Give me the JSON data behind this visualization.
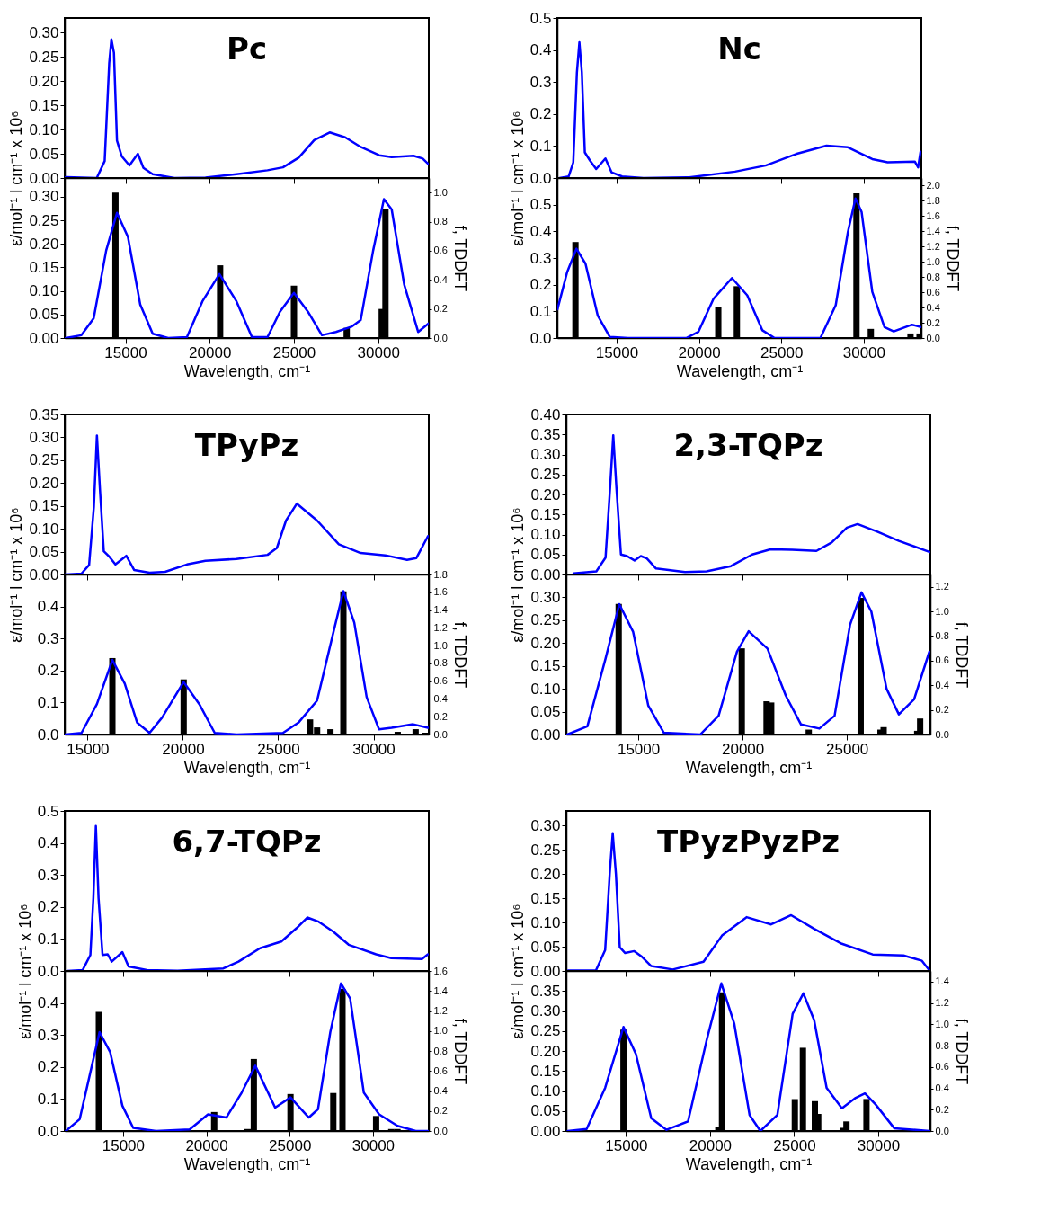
{
  "chart_data": [
    {
      "type": "line",
      "title": "Pc",
      "ylabel": "ε/mol⁻¹ l cm⁻¹ x 10⁶",
      "tick_labels": "y",
      "xlim": [
        11400,
        33000
      ],
      "xticks": [
        15000,
        20000,
        25000,
        30000
      ],
      "ylim": [
        0,
        0.33
      ],
      "yticks": [
        {
          "value": 0,
          "label": "0.00"
        },
        {
          "value": 0.05,
          "label": "0.05"
        },
        {
          "value": 0.1,
          "label": "0.10"
        },
        {
          "value": 0.15,
          "label": "0.15"
        },
        {
          "value": 0.2,
          "label": "0.20"
        },
        {
          "value": 0.25,
          "label": "0.25"
        },
        {
          "value": 0.3,
          "label": "0.30"
        }
      ],
      "series": [
        {
          "type": "line",
          "color": "#0000ff",
          "x": [
            11460,
            13300,
            13770,
            14040,
            14170,
            14320,
            14500,
            14780,
            15240,
            15740,
            16070,
            16620,
            17910,
            19750,
            21590,
            23430,
            24350,
            25280,
            26200,
            27120,
            28040,
            28960,
            30060,
            30800,
            32090,
            32640,
            32970
          ],
          "values": [
            0.002,
            0,
            0.035,
            0.237,
            0.286,
            0.258,
            0.077,
            0.045,
            0.026,
            0.05,
            0.021,
            0.008,
            0,
            0.001,
            0.008,
            0.016,
            0.022,
            0.042,
            0.078,
            0.094,
            0.084,
            0.064,
            0.047,
            0.043,
            0.046,
            0.04,
            0.029
          ]
        }
      ]
    },
    {
      "type": "line",
      "xlabel": "Wavelength, cm⁻¹",
      "y2label": "f, TDDFT",
      "xlim": [
        11400,
        33000
      ],
      "xticks": [
        15000,
        20000,
        25000,
        30000
      ],
      "ylim": [
        0,
        0.34
      ],
      "yticks": [
        {
          "value": 0,
          "label": "0.00"
        },
        {
          "value": 0.05,
          "label": "0.05"
        },
        {
          "value": 0.1,
          "label": "0.10"
        },
        {
          "value": 0.15,
          "label": "0.15"
        },
        {
          "value": 0.2,
          "label": "0.20"
        },
        {
          "value": 0.25,
          "label": "0.25"
        },
        {
          "value": 0.3,
          "label": "0.30"
        }
      ],
      "y2lim": [
        0,
        1.1
      ],
      "y2ticks": [
        {
          "value": 0,
          "label": "0.0"
        },
        {
          "value": 0.2,
          "label": "0.2"
        },
        {
          "value": 0.4,
          "label": "0.4"
        },
        {
          "value": 0.6,
          "label": "0.6"
        },
        {
          "value": 0.8,
          "label": "0.8"
        },
        {
          "value": 1,
          "label": "1.0"
        }
      ],
      "series": [
        {
          "type": "line",
          "color": "#0000ff",
          "x": [
            11460,
            12390,
            13120,
            13860,
            14500,
            15150,
            15880,
            16620,
            17540,
            18650,
            19570,
            20580,
            21590,
            22510,
            23430,
            24170,
            25000,
            25830,
            26660,
            27490,
            28410,
            28960,
            29700,
            30340,
            30800,
            31540,
            32370,
            32990
          ],
          "values": [
            0,
            0.006,
            0.042,
            0.186,
            0.266,
            0.215,
            0.071,
            0.009,
            0,
            0.002,
            0.078,
            0.136,
            0.078,
            0.002,
            0.002,
            0.056,
            0.096,
            0.056,
            0.006,
            0.013,
            0.024,
            0.038,
            0.186,
            0.295,
            0.273,
            0.114,
            0.013,
            0.031
          ]
        },
        {
          "type": "bar",
          "axis": "y2",
          "color": "#000000",
          "x": [
            14410,
            20620,
            25000,
            28130,
            30210,
            30430
          ],
          "values": [
            1.0,
            0.5,
            0.36,
            0.07,
            0.2,
            0.89
          ]
        }
      ]
    },
    {
      "type": "line",
      "title": "Nc",
      "ylabel": "ε/mol⁻¹ l cm⁻¹ x 10⁶",
      "tick_labels": "y",
      "xlim": [
        11400,
        33500
      ],
      "xticks": [
        15000,
        20000,
        25000,
        30000
      ],
      "ylim": [
        0,
        0.5
      ],
      "yticks": [
        {
          "value": 0,
          "label": "0.0"
        },
        {
          "value": 0.1,
          "label": "0.1"
        },
        {
          "value": 0.2,
          "label": "0.2"
        },
        {
          "value": 0.3,
          "label": "0.3"
        },
        {
          "value": 0.4,
          "label": "0.4"
        },
        {
          "value": 0.5,
          "label": "0.5"
        }
      ],
      "series": [
        {
          "type": "line",
          "color": "#0000ff",
          "x": [
            11540,
            12090,
            12370,
            12590,
            12740,
            12890,
            13070,
            13390,
            13760,
            14320,
            14690,
            15330,
            16630,
            19410,
            22190,
            24040,
            25890,
            27740,
            29040,
            30520,
            31450,
            33110,
            33300,
            33450
          ],
          "values": [
            0,
            0.005,
            0.049,
            0.33,
            0.424,
            0.33,
            0.08,
            0.054,
            0.028,
            0.061,
            0.018,
            0.005,
            0,
            0.002,
            0.02,
            0.039,
            0.075,
            0.101,
            0.096,
            0.059,
            0.049,
            0.051,
            0.033,
            0.082
          ]
        }
      ]
    },
    {
      "type": "line",
      "xlabel": "Wavelength, cm⁻¹",
      "y2label": "f, TDDFT",
      "xlim": [
        11400,
        33500
      ],
      "xticks": [
        15000,
        20000,
        25000,
        30000
      ],
      "ylim": [
        0,
        0.6
      ],
      "yticks": [
        {
          "value": 0,
          "label": "0.0"
        },
        {
          "value": 0.1,
          "label": "0.1"
        },
        {
          "value": 0.2,
          "label": "0.2"
        },
        {
          "value": 0.3,
          "label": "0.3"
        },
        {
          "value": 0.4,
          "label": "0.4"
        },
        {
          "value": 0.5,
          "label": "0.5"
        }
      ],
      "y2lim": [
        0,
        2.1
      ],
      "y2ticks": [
        {
          "value": 0,
          "label": "0.0"
        },
        {
          "value": 0.2,
          "label": "0.2"
        },
        {
          "value": 0.4,
          "label": "0.4"
        },
        {
          "value": 0.6,
          "label": "0.6"
        },
        {
          "value": 0.8,
          "label": "0.8"
        },
        {
          "value": 1,
          "label": "1.0"
        },
        {
          "value": 1.2,
          "label": "1.2"
        },
        {
          "value": 1.4,
          "label": "1.4"
        },
        {
          "value": 1.6,
          "label": "1.6"
        },
        {
          "value": 1.8,
          "label": "1.8"
        },
        {
          "value": 2,
          "label": "2.0"
        }
      ],
      "series": [
        {
          "type": "line",
          "color": "#0000ff",
          "x": [
            11410,
            12000,
            12560,
            13110,
            13850,
            14590,
            15700,
            19220,
            19960,
            20890,
            22000,
            22930,
            23850,
            24590,
            27370,
            28300,
            29040,
            29500,
            29870,
            30520,
            31260,
            31820,
            32930,
            33480
          ],
          "values": [
            0.108,
            0.248,
            0.335,
            0.279,
            0.085,
            0.004,
            0,
            0,
            0.023,
            0.148,
            0.225,
            0.16,
            0.029,
            0,
            0,
            0.123,
            0.398,
            0.523,
            0.473,
            0.173,
            0.041,
            0.025,
            0.05,
            0.041
          ]
        },
        {
          "type": "bar",
          "axis": "y2",
          "color": "#000000",
          "x": [
            12500,
            21170,
            22300,
            29560,
            30430,
            32840,
            33390
          ],
          "values": [
            1.26,
            0.41,
            0.68,
            1.9,
            0.12,
            0.06,
            0.06
          ]
        }
      ]
    },
    {
      "type": "line",
      "title": "TPyPz",
      "ylabel": "ε/mol⁻¹ l cm⁻¹ x 10⁶",
      "tick_labels": "y",
      "xlim": [
        13800,
        32900
      ],
      "xticks": [
        15000,
        20000,
        25000,
        30000
      ],
      "ylim": [
        0,
        0.35
      ],
      "yticks": [
        {
          "value": 0,
          "label": "0.00"
        },
        {
          "value": 0.05,
          "label": "0.05"
        },
        {
          "value": 0.1,
          "label": "0.10"
        },
        {
          "value": 0.15,
          "label": "0.15"
        },
        {
          "value": 0.2,
          "label": "0.20"
        },
        {
          "value": 0.25,
          "label": "0.25"
        },
        {
          "value": 0.3,
          "label": "0.30"
        },
        {
          "value": 0.35,
          "label": "0.35"
        }
      ],
      "series": [
        {
          "type": "line",
          "color": "#0000ff",
          "x": [
            13830,
            14680,
            15080,
            15330,
            15490,
            15650,
            15850,
            16140,
            16460,
            17030,
            17440,
            18250,
            19070,
            20210,
            21180,
            22810,
            24440,
            24930,
            25410,
            25980,
            27040,
            28180,
            29320,
            30620,
            31760,
            32250,
            32860
          ],
          "values": [
            0,
            0.002,
            0.021,
            0.148,
            0.304,
            0.185,
            0.051,
            0.039,
            0.022,
            0.041,
            0.01,
            0.004,
            0.006,
            0.022,
            0.03,
            0.034,
            0.043,
            0.058,
            0.118,
            0.155,
            0.118,
            0.066,
            0.047,
            0.042,
            0.032,
            0.036,
            0.084
          ]
        }
      ]
    },
    {
      "type": "line",
      "xlabel": "Wavelength, cm⁻¹",
      "y2label": "f, TDDFT",
      "xlim": [
        13800,
        32900
      ],
      "xticks": [
        15000,
        20000,
        25000,
        30000
      ],
      "ylim": [
        0,
        0.5
      ],
      "yticks": [
        {
          "value": 0,
          "label": "0.0"
        },
        {
          "value": 0.1,
          "label": "0.1"
        },
        {
          "value": 0.2,
          "label": "0.2"
        },
        {
          "value": 0.3,
          "label": "0.3"
        },
        {
          "value": 0.4,
          "label": "0.4"
        }
      ],
      "y2lim": [
        0,
        1.8
      ],
      "y2ticks": [
        {
          "value": 0,
          "label": "0.0"
        },
        {
          "value": 0.2,
          "label": "0.2"
        },
        {
          "value": 0.4,
          "label": "0.4"
        },
        {
          "value": 0.6,
          "label": "0.6"
        },
        {
          "value": 0.8,
          "label": "0.8"
        },
        {
          "value": 1,
          "label": "1.0"
        },
        {
          "value": 1.2,
          "label": "1.2"
        },
        {
          "value": 1.4,
          "label": "1.4"
        },
        {
          "value": 1.6,
          "label": "1.6"
        },
        {
          "value": 1.8,
          "label": "1.8"
        }
      ],
      "series": [
        {
          "type": "line",
          "color": "#0000ff",
          "x": [
            13830,
            14680,
            15490,
            16300,
            16950,
            17600,
            18250,
            18910,
            20040,
            20860,
            21670,
            22810,
            25250,
            26060,
            27040,
            27850,
            28420,
            28990,
            29640,
            30290,
            30950,
            32080,
            32860
          ],
          "values": [
            0,
            0.005,
            0.095,
            0.233,
            0.159,
            0.037,
            0.005,
            0.053,
            0.164,
            0.095,
            0.005,
            0,
            0.005,
            0.037,
            0.106,
            0.308,
            0.448,
            0.35,
            0.117,
            0.016,
            0.021,
            0.032,
            0.021
          ]
        },
        {
          "type": "bar",
          "axis": "y2",
          "color": "#000000",
          "x": [
            16300,
            20040,
            26670,
            27040,
            27740,
            28420,
            31270,
            32210,
            32730
          ],
          "values": [
            0.86,
            0.62,
            0.17,
            0.08,
            0.06,
            1.61,
            0.03,
            0.06,
            0.02
          ]
        }
      ]
    },
    {
      "type": "line",
      "title": "2,3-TQPz",
      "ylabel": "ε/mol⁻¹ l cm⁻¹ x 10⁶",
      "tick_labels": "y",
      "xlim": [
        11550,
        29000
      ],
      "xticks": [
        15000,
        20000,
        25000
      ],
      "ylim": [
        0,
        0.4
      ],
      "yticks": [
        {
          "value": 0,
          "label": "0.00"
        },
        {
          "value": 0.05,
          "label": "0.05"
        },
        {
          "value": 0.1,
          "label": "0.10"
        },
        {
          "value": 0.15,
          "label": "0.15"
        },
        {
          "value": 0.2,
          "label": "0.20"
        },
        {
          "value": 0.25,
          "label": "0.25"
        },
        {
          "value": 0.3,
          "label": "0.30"
        },
        {
          "value": 0.35,
          "label": "0.35"
        },
        {
          "value": 0.4,
          "label": "0.40"
        }
      ],
      "series": [
        {
          "type": "line",
          "color": "#0000ff",
          "x": [
            11900,
            12990,
            13430,
            13650,
            13800,
            13950,
            14170,
            14460,
            14820,
            15120,
            15410,
            15850,
            17240,
            18270,
            19440,
            20460,
            21340,
            22370,
            23540,
            24270,
            25000,
            25510,
            26460,
            27490,
            28980
          ],
          "values": [
            0.003,
            0.008,
            0.042,
            0.218,
            0.348,
            0.218,
            0.05,
            0.046,
            0.035,
            0.046,
            0.04,
            0.015,
            0.006,
            0.008,
            0.021,
            0.05,
            0.063,
            0.062,
            0.059,
            0.08,
            0.117,
            0.126,
            0.107,
            0.084,
            0.056
          ]
        }
      ]
    },
    {
      "type": "line",
      "xlabel": "Wavelength, cm⁻¹",
      "y2label": "f, TDDFT",
      "xlim": [
        11550,
        29000
      ],
      "xticks": [
        15000,
        20000,
        25000
      ],
      "ylim": [
        0,
        0.35
      ],
      "yticks": [
        {
          "value": 0,
          "label": "0.00"
        },
        {
          "value": 0.05,
          "label": "0.05"
        },
        {
          "value": 0.1,
          "label": "0.10"
        },
        {
          "value": 0.15,
          "label": "0.15"
        },
        {
          "value": 0.2,
          "label": "0.20"
        },
        {
          "value": 0.25,
          "label": "0.25"
        },
        {
          "value": 0.3,
          "label": "0.30"
        }
      ],
      "y2lim": [
        0,
        1.3
      ],
      "y2ticks": [
        {
          "value": 0,
          "label": "0.0"
        },
        {
          "value": 0.2,
          "label": "0.2"
        },
        {
          "value": 0.4,
          "label": "0.4"
        },
        {
          "value": 0.6,
          "label": "0.6"
        },
        {
          "value": 0.8,
          "label": "0.8"
        },
        {
          "value": 1,
          "label": "1.0"
        },
        {
          "value": 1.2,
          "label": "1.2"
        }
      ],
      "series": [
        {
          "type": "line",
          "color": "#0000ff",
          "x": [
            11600,
            12560,
            13430,
            14090,
            14750,
            15480,
            16220,
            17970,
            18850,
            19730,
            20290,
            21190,
            22070,
            22800,
            23680,
            24410,
            25150,
            25700,
            26170,
            26900,
            27490,
            28220,
            28950
          ],
          "values": [
            0,
            0.018,
            0.166,
            0.285,
            0.225,
            0.063,
            0.004,
            0,
            0.041,
            0.181,
            0.226,
            0.188,
            0.085,
            0.022,
            0.013,
            0.041,
            0.24,
            0.311,
            0.269,
            0.1,
            0.044,
            0.077,
            0.181
          ]
        },
        {
          "type": "bar",
          "axis": "y2",
          "color": "#000000",
          "x": [
            14060,
            19960,
            21150,
            21370,
            23170,
            25660,
            26610,
            26760,
            28370,
            28510
          ],
          "values": [
            1.06,
            0.7,
            0.27,
            0.26,
            0.04,
            1.11,
            0.04,
            0.06,
            0.03,
            0.13
          ]
        }
      ]
    },
    {
      "type": "line",
      "title": "6,7-TQPz",
      "ylabel": "ε/mol⁻¹ l cm⁻¹ x 10⁶",
      "tick_labels": "y",
      "xlim": [
        11500,
        33350
      ],
      "xticks": [
        15000,
        20000,
        25000,
        30000
      ],
      "ylim": [
        0,
        0.5
      ],
      "yticks": [
        {
          "value": 0,
          "label": "0.0"
        },
        {
          "value": 0.1,
          "label": "0.1"
        },
        {
          "value": 0.2,
          "label": "0.2"
        },
        {
          "value": 0.3,
          "label": "0.3"
        },
        {
          "value": 0.4,
          "label": "0.4"
        },
        {
          "value": 0.5,
          "label": "0.5"
        }
      ],
      "series": [
        {
          "type": "line",
          "color": "#0000ff",
          "x": [
            11660,
            12580,
            13040,
            13220,
            13370,
            13530,
            13770,
            14080,
            14320,
            14960,
            15330,
            16430,
            18270,
            21020,
            21930,
            23220,
            24500,
            25420,
            26060,
            26700,
            27620,
            28540,
            30190,
            31100,
            32940,
            33300
          ],
          "values": [
            0,
            0.003,
            0.05,
            0.228,
            0.453,
            0.228,
            0.05,
            0.052,
            0.029,
            0.059,
            0.014,
            0.003,
            0.001,
            0.008,
            0.029,
            0.071,
            0.092,
            0.134,
            0.167,
            0.155,
            0.123,
            0.082,
            0.052,
            0.04,
            0.037,
            0.052
          ]
        }
      ]
    },
    {
      "type": "line",
      "xlabel": "Wavelength, cm⁻¹",
      "y2label": "f, TDDFT",
      "xlim": [
        11500,
        33350
      ],
      "xticks": [
        15000,
        20000,
        25000,
        30000
      ],
      "ylim": [
        0,
        0.5
      ],
      "yticks": [
        {
          "value": 0,
          "label": "0.0"
        },
        {
          "value": 0.1,
          "label": "0.1"
        },
        {
          "value": 0.2,
          "label": "0.2"
        },
        {
          "value": 0.3,
          "label": "0.3"
        },
        {
          "value": 0.4,
          "label": "0.4"
        }
      ],
      "y2lim": [
        0,
        1.6
      ],
      "y2ticks": [
        {
          "value": 0,
          "label": "0.0"
        },
        {
          "value": 0.2,
          "label": "0.2"
        },
        {
          "value": 0.4,
          "label": "0.4"
        },
        {
          "value": 0.6,
          "label": "0.6"
        },
        {
          "value": 0.8,
          "label": "0.8"
        },
        {
          "value": 1,
          "label": "1.0"
        },
        {
          "value": 1.2,
          "label": "1.2"
        },
        {
          "value": 1.4,
          "label": "1.4"
        },
        {
          "value": 1.6,
          "label": "1.6"
        }
      ],
      "series": [
        {
          "type": "line",
          "color": "#0000ff",
          "x": [
            11570,
            12400,
            13130,
            13590,
            14230,
            14960,
            15610,
            16980,
            19000,
            20100,
            21200,
            22120,
            22940,
            24130,
            25050,
            26150,
            26700,
            27440,
            28080,
            28630,
            29450,
            30370,
            31470,
            32570,
            33300
          ],
          "values": [
            0,
            0.037,
            0.204,
            0.309,
            0.246,
            0.079,
            0.01,
            0,
            0.005,
            0.052,
            0.042,
            0.12,
            0.204,
            0.073,
            0.105,
            0.042,
            0.068,
            0.309,
            0.461,
            0.414,
            0.12,
            0.052,
            0.016,
            0,
            0
          ]
        },
        {
          "type": "bar",
          "axis": "y2",
          "color": "#000000",
          "x": [
            13550,
            20470,
            22480,
            22850,
            25050,
            27620,
            28170,
            30190,
            31100,
            31470
          ],
          "values": [
            1.19,
            0.19,
            0.02,
            0.72,
            0.37,
            0.38,
            1.42,
            0.15,
            0.02,
            0.02
          ]
        }
      ]
    },
    {
      "type": "line",
      "title": "TPyzPyzPz",
      "ylabel": "ε/mol⁻¹ l cm⁻¹ x 10⁶",
      "tick_labels": "y",
      "xlim": [
        11450,
        33100
      ],
      "xticks": [
        15000,
        20000,
        25000,
        30000
      ],
      "ylim": [
        0,
        0.33
      ],
      "yticks": [
        {
          "value": 0,
          "label": "0.00"
        },
        {
          "value": 0.05,
          "label": "0.05"
        },
        {
          "value": 0.1,
          "label": "0.10"
        },
        {
          "value": 0.15,
          "label": "0.15"
        },
        {
          "value": 0.2,
          "label": "0.20"
        },
        {
          "value": 0.25,
          "label": "0.25"
        },
        {
          "value": 0.3,
          "label": "0.30"
        }
      ],
      "series": [
        {
          "type": "line",
          "color": "#0000ff",
          "x": [
            11560,
            13210,
            13760,
            14030,
            14210,
            14400,
            14630,
            14950,
            15490,
            15950,
            16500,
            17780,
            19610,
            20710,
            22170,
            23630,
            24820,
            26190,
            27840,
            29670,
            31500,
            32600,
            33050
          ],
          "values": [
            0.001,
            0.001,
            0.043,
            0.2,
            0.284,
            0.2,
            0.049,
            0.037,
            0.041,
            0.029,
            0.01,
            0.003,
            0.019,
            0.073,
            0.111,
            0.096,
            0.115,
            0.087,
            0.056,
            0.034,
            0.032,
            0.021,
            0.001
          ]
        }
      ]
    },
    {
      "type": "line",
      "xlabel": "Wavelength, cm⁻¹",
      "y2label": "f, TDDFT",
      "xlim": [
        11450,
        33100
      ],
      "xticks": [
        15000,
        20000,
        25000,
        30000
      ],
      "ylim": [
        0,
        0.4
      ],
      "yticks": [
        {
          "value": 0,
          "label": "0.00"
        },
        {
          "value": 0.05,
          "label": "0.05"
        },
        {
          "value": 0.1,
          "label": "0.10"
        },
        {
          "value": 0.15,
          "label": "0.15"
        },
        {
          "value": 0.2,
          "label": "0.20"
        },
        {
          "value": 0.25,
          "label": "0.25"
        },
        {
          "value": 0.3,
          "label": "0.30"
        },
        {
          "value": 0.35,
          "label": "0.35"
        }
      ],
      "y2lim": [
        0,
        1.5
      ],
      "y2ticks": [
        {
          "value": 0,
          "label": "0.0"
        },
        {
          "value": 0.2,
          "label": "0.2"
        },
        {
          "value": 0.4,
          "label": "0.4"
        },
        {
          "value": 0.6,
          "label": "0.6"
        },
        {
          "value": 0.8,
          "label": "0.8"
        },
        {
          "value": 1,
          "label": "1.0"
        },
        {
          "value": 1.2,
          "label": "1.2"
        },
        {
          "value": 1.4,
          "label": "1.4"
        }
      ],
      "series": [
        {
          "type": "line",
          "color": "#0000ff",
          "x": [
            11530,
            12660,
            13760,
            14850,
            15590,
            16500,
            17410,
            18690,
            19790,
            20670,
            21440,
            22350,
            22990,
            24000,
            24910,
            25550,
            26190,
            26930,
            27840,
            28660,
            29210,
            29850,
            30950,
            33050
          ],
          "values": [
            0,
            0.005,
            0.108,
            0.26,
            0.192,
            0.032,
            0.003,
            0.024,
            0.226,
            0.369,
            0.268,
            0.04,
            0,
            0.04,
            0.293,
            0.344,
            0.277,
            0.108,
            0.057,
            0.083,
            0.094,
            0.066,
            0.007,
            0
          ]
        },
        {
          "type": "bar",
          "axis": "y2",
          "color": "#000000",
          "x": [
            14850,
            20490,
            20710,
            25040,
            25520,
            26230,
            26430,
            27900,
            28110,
            29300
          ],
          "values": [
            0.95,
            0.04,
            1.3,
            0.3,
            0.78,
            0.28,
            0.16,
            0.03,
            0.09,
            0.3
          ]
        }
      ]
    }
  ]
}
